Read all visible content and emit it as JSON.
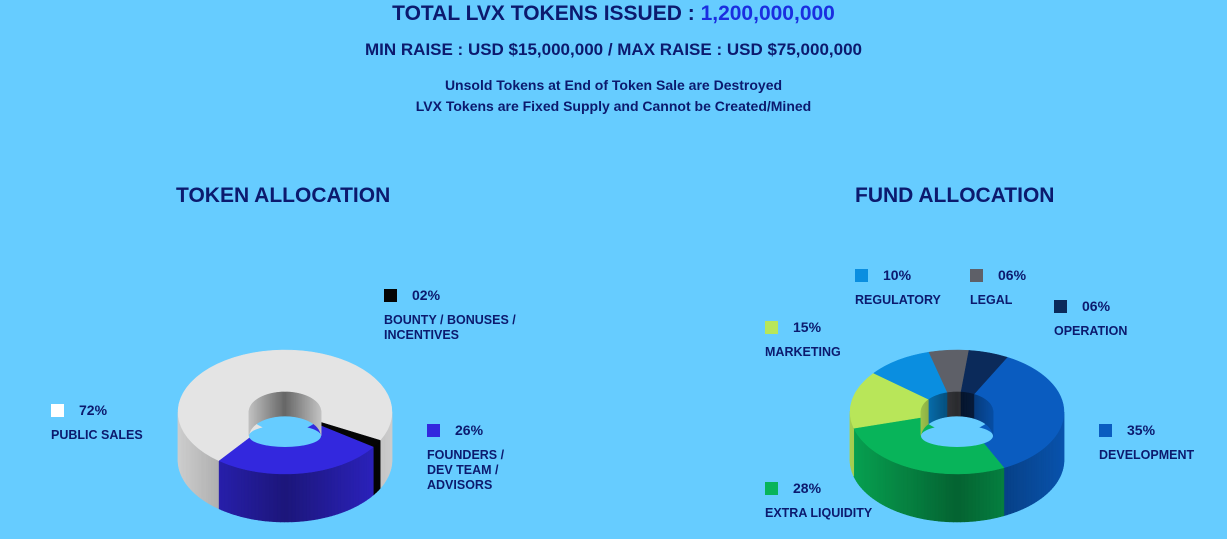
{
  "header": {
    "title_prefix": "TOTAL LVX TOKENS ISSUED : ",
    "title_value": "1,200,000,000",
    "minmax": "MIN RAISE : USD $15,000,000 / MAX RAISE : USD $75,000,000",
    "note1": "Unsold Tokens at End of Token Sale are Destroyed",
    "note2": "LVX Tokens are Fixed Supply and Cannot be Created/Mined"
  },
  "chart_data": [
    {
      "type": "pie",
      "title": "TOKEN ALLOCATION",
      "slices": [
        {
          "pct": "72%",
          "value": 72,
          "label": "PUBLIC SALES",
          "color": "#e4e4e4"
        },
        {
          "pct": "02%",
          "value": 2,
          "label": "BOUNTY / BONUSES / INCENTIVES",
          "color": "#050505"
        },
        {
          "pct": "26%",
          "value": 26,
          "label": "FOUNDERS / DEV TEAM / ADVISORS",
          "color": "#3328de"
        }
      ]
    },
    {
      "type": "pie",
      "title": "FUND ALLOCATION",
      "slices": [
        {
          "pct": "35%",
          "value": 35,
          "label": "DEVELOPMENT",
          "color": "#0a5cc0"
        },
        {
          "pct": "28%",
          "value": 28,
          "label": "EXTRA LIQUIDITY",
          "color": "#08b45a"
        },
        {
          "pct": "15%",
          "value": 15,
          "label": "MARKETING",
          "color": "#b8e659"
        },
        {
          "pct": "10%",
          "value": 10,
          "label": "REGULATORY",
          "color": "#0a8ee0"
        },
        {
          "pct": "06%",
          "value": 6,
          "label": "LEGAL",
          "color": "#5e6068"
        },
        {
          "pct": "06%",
          "value": 6,
          "label": "OPERATION",
          "color": "#0b2a5a"
        }
      ]
    }
  ]
}
